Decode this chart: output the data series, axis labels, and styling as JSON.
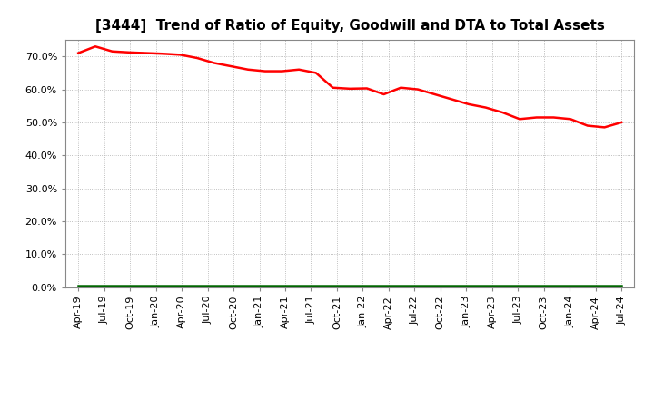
{
  "title": "[3444]  Trend of Ratio of Equity, Goodwill and DTA to Total Assets",
  "title_fontsize": 11,
  "equity": [
    71.0,
    73.0,
    71.5,
    71.2,
    71.0,
    70.8,
    70.5,
    69.5,
    68.0,
    67.0,
    66.0,
    65.5,
    65.5,
    66.0,
    65.0,
    60.5,
    60.2,
    60.3,
    58.5,
    60.5,
    60.0,
    58.5,
    57.0,
    55.5,
    54.5,
    53.0,
    51.0,
    51.5,
    51.5,
    51.0,
    49.0,
    48.5,
    50.0
  ],
  "goodwill": [
    0.0,
    0.0,
    0.0,
    0.0,
    0.0,
    0.0,
    0.0,
    0.0,
    0.0,
    0.0,
    0.0,
    0.0,
    0.0,
    0.0,
    0.0,
    0.0,
    0.0,
    0.0,
    0.0,
    0.0,
    0.0,
    0.0,
    0.0,
    0.0,
    0.0,
    0.0,
    0.0,
    0.0,
    0.0,
    0.0,
    0.0,
    0.0,
    0.0
  ],
  "dta": [
    0.5,
    0.5,
    0.5,
    0.5,
    0.5,
    0.5,
    0.5,
    0.5,
    0.5,
    0.5,
    0.5,
    0.5,
    0.5,
    0.5,
    0.5,
    0.5,
    0.5,
    0.5,
    0.5,
    0.5,
    0.5,
    0.5,
    0.5,
    0.5,
    0.5,
    0.5,
    0.5,
    0.5,
    0.5,
    0.5,
    0.5,
    0.5,
    0.5
  ],
  "x_labels": [
    "Apr-19",
    "Jul-19",
    "Oct-19",
    "Jan-20",
    "Apr-20",
    "Jul-20",
    "Oct-20",
    "Jan-21",
    "Apr-21",
    "Jul-21",
    "Oct-21",
    "Jan-22",
    "Apr-22",
    "Jul-22",
    "Oct-22",
    "Jan-23",
    "Apr-23",
    "Jul-23",
    "Oct-23",
    "Jan-24",
    "Apr-24",
    "Jul-24"
  ],
  "equity_color": "#ff0000",
  "goodwill_color": "#0000cc",
  "dta_color": "#006600",
  "bg_color": "#ffffff",
  "grid_color": "#999999",
  "ylim_min": 0,
  "ylim_max": 75,
  "yticks": [
    0,
    10,
    20,
    30,
    40,
    50,
    60,
    70
  ],
  "line_width": 1.8,
  "legend_fontsize": 9,
  "tick_fontsize": 8,
  "title_fontweight": "bold"
}
